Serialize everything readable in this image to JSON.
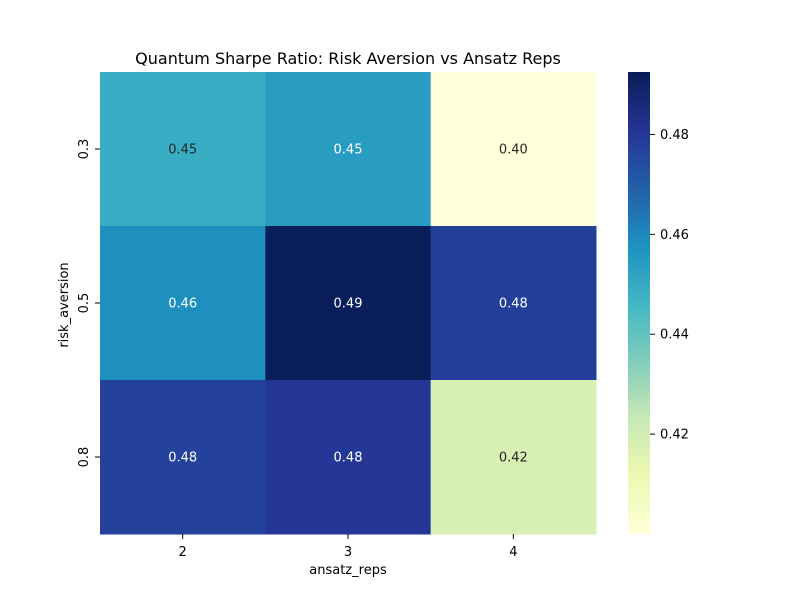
{
  "chart_data": {
    "type": "heatmap",
    "title": "Quantum Sharpe Ratio: Risk Aversion vs Ansatz Reps",
    "xlabel": "ansatz_reps",
    "ylabel": "risk_aversion",
    "x_categories": [
      "2",
      "3",
      "4"
    ],
    "y_categories": [
      "0.3",
      "0.5",
      "0.8"
    ],
    "values": [
      [
        0.449,
        0.454,
        0.4
      ],
      [
        0.458,
        0.492,
        0.478
      ],
      [
        0.477,
        0.48,
        0.418
      ]
    ],
    "labels": [
      [
        "0.45",
        "0.45",
        "0.40"
      ],
      [
        "0.46",
        "0.49",
        "0.48"
      ],
      [
        "0.48",
        "0.48",
        "0.42"
      ]
    ],
    "colorbar": {
      "vmin": 0.4,
      "vmax": 0.4925,
      "ticks": [
        0.42,
        0.44,
        0.46,
        0.48
      ],
      "tick_labels": [
        "0.42",
        "0.44",
        "0.46",
        "0.48"
      ]
    },
    "colormap": "YlGnBu",
    "colormap_stops": [
      "#ffffd9",
      "#edf8b1",
      "#c7e9b4",
      "#7fcdbb",
      "#41b6c4",
      "#1d91c0",
      "#225ea8",
      "#253494",
      "#081d58"
    ]
  }
}
